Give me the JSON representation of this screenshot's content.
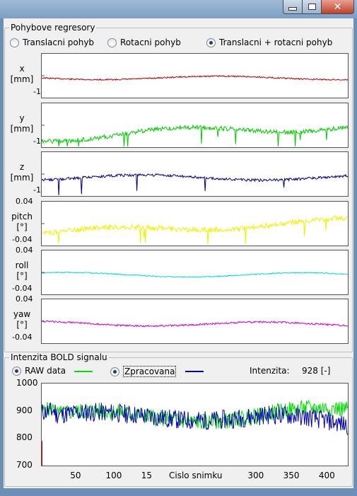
{
  "window": {
    "min_icon": "minimize-icon",
    "max_icon": "maximize-icon",
    "close_glyph": "✕"
  },
  "motion": {
    "group_title": "Pohybove regresory",
    "options": [
      {
        "label": "Translacni pohyb",
        "checked": false
      },
      {
        "label": "Rotacni pohyb",
        "checked": false
      },
      {
        "label": "Translacni + rotacni pohyb",
        "checked": true
      }
    ],
    "panels": [
      {
        "id": "x",
        "ylabel1": "x",
        "ylabel2": "[mm]",
        "ytop": "",
        "ybottom": "-1",
        "color": "#b00000"
      },
      {
        "id": "y",
        "ylabel1": "y",
        "ylabel2": "[mm]",
        "ytop": "",
        "ybottom": "-1",
        "color": "#00cc00"
      },
      {
        "id": "z",
        "ylabel1": "z",
        "ylabel2": "[mm]",
        "ytop": "",
        "ybottom": "-1",
        "color": "#000080"
      },
      {
        "id": "pitch",
        "ylabel1": "pitch",
        "ylabel2": "[°]",
        "ytop": "0.04",
        "ybottom": "-0.04",
        "color": "#f0f000"
      },
      {
        "id": "roll",
        "ylabel1": "roll",
        "ylabel2": "[°]",
        "ytop": "0.04",
        "ybottom": "-0.04",
        "color": "#00d8d8"
      },
      {
        "id": "yaw",
        "ylabel1": "yaw",
        "ylabel2": "[°]",
        "ytop": "0.04",
        "ybottom": "-0.04",
        "color": "#cc00cc"
      }
    ]
  },
  "bold": {
    "group_title": "Intenzita BOLD signalu",
    "raw_label": "RAW data",
    "raw_checked": true,
    "raw_color": "#00dd00",
    "proc_label": "Zpracovana",
    "proc_checked": true,
    "proc_color": "#0000aa",
    "intensity_label": "Intenzita:",
    "intensity_value": "928 [-]"
  },
  "chart_data": {
    "type": "line",
    "title": "",
    "xlabel": "Cislo snimku",
    "ylabel": "",
    "xlim": [
      1,
      432
    ],
    "ylim": [
      700,
      1000
    ],
    "yticks": [
      "1000",
      "900",
      "800",
      "700"
    ],
    "xticks": [
      "50",
      "100",
      "15",
      "300",
      "350",
      "400"
    ],
    "series": [
      {
        "name": "RAW data"
      },
      {
        "name": "Zpracovana"
      }
    ]
  }
}
